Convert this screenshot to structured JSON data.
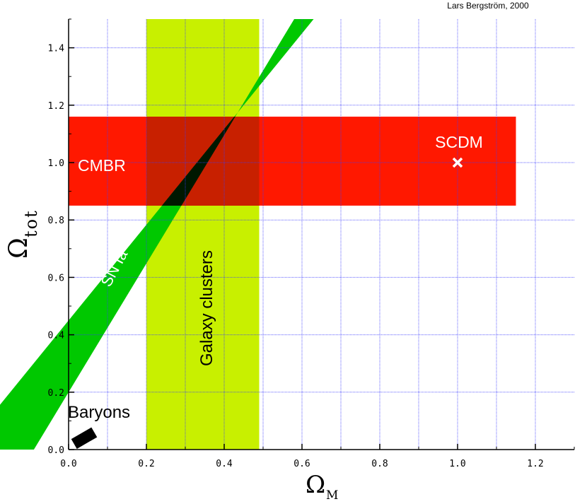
{
  "credit": "Lars Bergström, 2000",
  "chart_data": {
    "type": "area",
    "title": "",
    "xlabel_symbol": "Ω",
    "xlabel_sub": "M",
    "ylabel_symbol": "Ω",
    "ylabel_sub": "tot",
    "xlim": [
      0.0,
      1.3
    ],
    "ylim": [
      0.0,
      1.5
    ],
    "grid": true,
    "xticks": [
      "0.0",
      "0.2",
      "0.4",
      "0.6",
      "0.8",
      "1.0",
      "1.2"
    ],
    "yticks": [
      "0.0",
      "0.2",
      "0.4",
      "0.6",
      "0.8",
      "1.0",
      "1.2",
      "1.4"
    ],
    "regions": [
      {
        "name": "Galaxy clusters",
        "color": "#c8f000",
        "x_range": [
          0.2,
          0.49
        ],
        "y_range": [
          0.0,
          1.5
        ]
      },
      {
        "name": "SN Ia",
        "color": "#00c800",
        "lower_line": [
          [
            0.0,
            0.2
          ],
          [
            0.58,
            1.5
          ]
        ],
        "upper_line": [
          [
            0.0,
            0.45
          ],
          [
            0.63,
            1.5
          ]
        ]
      },
      {
        "name": "CMBR",
        "color": "#ff1800",
        "x_range": [
          0.0,
          1.15
        ],
        "y_range": [
          0.85,
          1.16
        ]
      }
    ],
    "overlap_color": "#001800",
    "points": [
      {
        "name": "SCDM",
        "x": 1.0,
        "y": 1.0,
        "marker": "x",
        "color": "#ffffff"
      }
    ],
    "baryons": {
      "name": "Baryons",
      "x_range": [
        0.01,
        0.07
      ],
      "y_center": 0.04,
      "color": "#000000"
    }
  }
}
